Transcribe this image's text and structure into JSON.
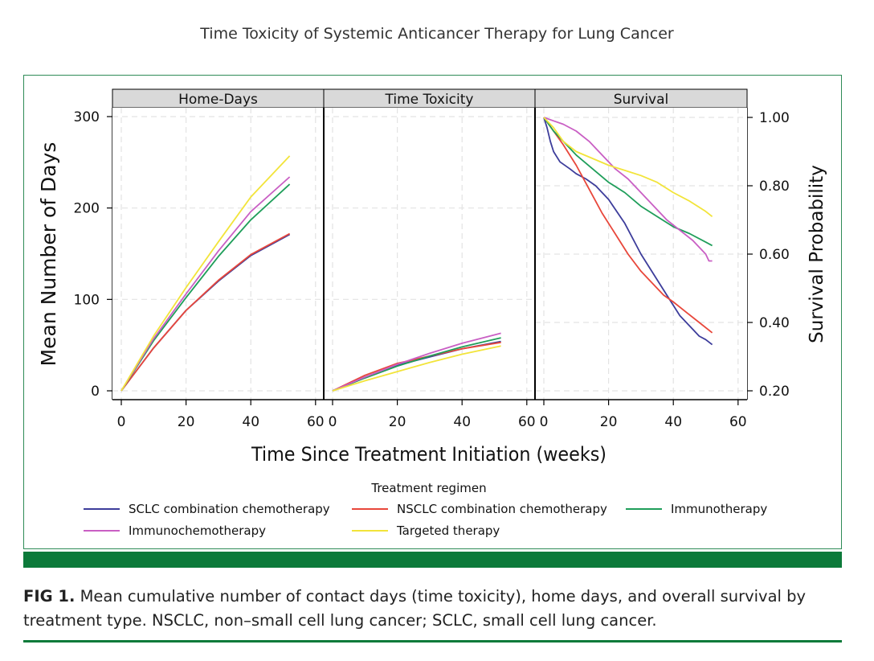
{
  "header": {
    "title": "Time Toxicity of Systemic Anticancer Therapy for Lung Cancer"
  },
  "colors": {
    "frame": "#2e8b57",
    "accent_bar": "#0c7a3a",
    "strip": "#d9d9d9"
  },
  "chart_data": {
    "type": "line",
    "panels": [
      {
        "label": "Home-Days",
        "axis": "left"
      },
      {
        "label": "Time Toxicity",
        "axis": "left"
      },
      {
        "label": "Survival",
        "axis": "right"
      }
    ],
    "xlabel": "Time Since Treatment Initiation (weeks)",
    "ylabel_left": "Mean Number of Days",
    "ylabel_right": "Survival Probability",
    "x_ticks": [
      "0",
      "20",
      "40",
      "60"
    ],
    "xlim": [
      0,
      60
    ],
    "y_left_ticks": [
      "0",
      "100",
      "200",
      "300"
    ],
    "ylim_left": [
      0,
      300
    ],
    "y_right_ticks": [
      "0.20",
      "0.40",
      "0.60",
      "0.80",
      "1.00"
    ],
    "ylim_right": [
      0.2,
      1.0
    ],
    "grid": true,
    "legend_title": "Treatment regimen",
    "legend_position": "bottom",
    "series": [
      {
        "name": "SCLC combination chemotherapy",
        "color": "#3d3d9b",
        "home_days": [
          [
            0,
            0
          ],
          [
            10,
            47
          ],
          [
            20,
            88
          ],
          [
            30,
            120
          ],
          [
            40,
            148
          ],
          [
            52,
            171
          ]
        ],
        "time_toxicity": [
          [
            0,
            0
          ],
          [
            10,
            15
          ],
          [
            20,
            28
          ],
          [
            30,
            37
          ],
          [
            40,
            46
          ],
          [
            52,
            54
          ]
        ],
        "survival": [
          [
            0,
            1.0
          ],
          [
            1,
            0.97
          ],
          [
            2,
            0.93
          ],
          [
            3,
            0.9
          ],
          [
            5,
            0.87
          ],
          [
            8,
            0.85
          ],
          [
            10,
            0.835
          ],
          [
            13,
            0.82
          ],
          [
            16,
            0.8
          ],
          [
            20,
            0.76
          ],
          [
            25,
            0.69
          ],
          [
            30,
            0.6
          ],
          [
            34,
            0.54
          ],
          [
            38,
            0.48
          ],
          [
            42,
            0.42
          ],
          [
            46,
            0.38
          ],
          [
            48,
            0.36
          ],
          [
            50,
            0.35
          ],
          [
            52,
            0.335
          ]
        ]
      },
      {
        "name": "NSCLC combination chemotherapy",
        "color": "#e8473b",
        "home_days": [
          [
            0,
            0
          ],
          [
            10,
            47
          ],
          [
            20,
            88
          ],
          [
            30,
            121
          ],
          [
            40,
            149
          ],
          [
            52,
            172
          ]
        ],
        "time_toxicity": [
          [
            0,
            0
          ],
          [
            10,
            17
          ],
          [
            20,
            30
          ],
          [
            30,
            38
          ],
          [
            40,
            46
          ],
          [
            52,
            53
          ]
        ],
        "survival": [
          [
            0,
            1.0
          ],
          [
            3,
            0.96
          ],
          [
            6,
            0.92
          ],
          [
            10,
            0.86
          ],
          [
            14,
            0.79
          ],
          [
            18,
            0.72
          ],
          [
            22,
            0.66
          ],
          [
            26,
            0.6
          ],
          [
            30,
            0.55
          ],
          [
            34,
            0.51
          ],
          [
            37,
            0.48
          ],
          [
            40,
            0.46
          ],
          [
            44,
            0.43
          ],
          [
            48,
            0.4
          ],
          [
            52,
            0.37
          ]
        ]
      },
      {
        "name": "Immunotherapy",
        "color": "#1f9e5a",
        "home_days": [
          [
            0,
            0
          ],
          [
            10,
            55
          ],
          [
            20,
            102
          ],
          [
            30,
            147
          ],
          [
            40,
            187
          ],
          [
            52,
            226
          ]
        ],
        "time_toxicity": [
          [
            0,
            0
          ],
          [
            10,
            14
          ],
          [
            20,
            27
          ],
          [
            30,
            38
          ],
          [
            40,
            48
          ],
          [
            52,
            58
          ]
        ],
        "survival": [
          [
            0,
            1.0
          ],
          [
            3,
            0.96
          ],
          [
            6,
            0.93
          ],
          [
            10,
            0.89
          ],
          [
            15,
            0.85
          ],
          [
            20,
            0.81
          ],
          [
            25,
            0.78
          ],
          [
            30,
            0.74
          ],
          [
            35,
            0.71
          ],
          [
            40,
            0.68
          ],
          [
            45,
            0.66
          ],
          [
            50,
            0.635
          ],
          [
            52,
            0.625
          ]
        ]
      },
      {
        "name": "Immunochemotherapy",
        "color": "#c95fc4",
        "home_days": [
          [
            0,
            0
          ],
          [
            10,
            57
          ],
          [
            20,
            106
          ],
          [
            30,
            153
          ],
          [
            40,
            196
          ],
          [
            52,
            234
          ]
        ],
        "time_toxicity": [
          [
            0,
            0
          ],
          [
            10,
            15
          ],
          [
            20,
            29
          ],
          [
            30,
            41
          ],
          [
            40,
            52
          ],
          [
            52,
            63
          ]
        ],
        "survival": [
          [
            0,
            1.0
          ],
          [
            3,
            0.99
          ],
          [
            6,
            0.98
          ],
          [
            10,
            0.96
          ],
          [
            14,
            0.93
          ],
          [
            18,
            0.89
          ],
          [
            22,
            0.85
          ],
          [
            26,
            0.82
          ],
          [
            30,
            0.78
          ],
          [
            34,
            0.74
          ],
          [
            38,
            0.7
          ],
          [
            42,
            0.67
          ],
          [
            46,
            0.64
          ],
          [
            50,
            0.6
          ],
          [
            51,
            0.58
          ],
          [
            52,
            0.58
          ]
        ]
      },
      {
        "name": "Targeted therapy",
        "color": "#f2e43a",
        "home_days": [
          [
            0,
            0
          ],
          [
            10,
            60
          ],
          [
            20,
            113
          ],
          [
            30,
            163
          ],
          [
            40,
            212
          ],
          [
            52,
            257
          ]
        ],
        "time_toxicity": [
          [
            0,
            0
          ],
          [
            10,
            11
          ],
          [
            20,
            21
          ],
          [
            30,
            31
          ],
          [
            40,
            40
          ],
          [
            52,
            49
          ]
        ],
        "survival": [
          [
            0,
            1.0
          ],
          [
            3,
            0.97
          ],
          [
            6,
            0.93
          ],
          [
            10,
            0.9
          ],
          [
            15,
            0.88
          ],
          [
            20,
            0.86
          ],
          [
            25,
            0.845
          ],
          [
            30,
            0.83
          ],
          [
            35,
            0.81
          ],
          [
            40,
            0.78
          ],
          [
            45,
            0.755
          ],
          [
            50,
            0.725
          ],
          [
            52,
            0.71
          ]
        ]
      }
    ]
  },
  "caption": {
    "label": "FIG 1.",
    "text": "Mean cumulative number of contact days (time toxicity), home days, and overall survival by treatment type. NSCLC, non–small cell lung cancer; SCLC, small cell lung cancer."
  }
}
